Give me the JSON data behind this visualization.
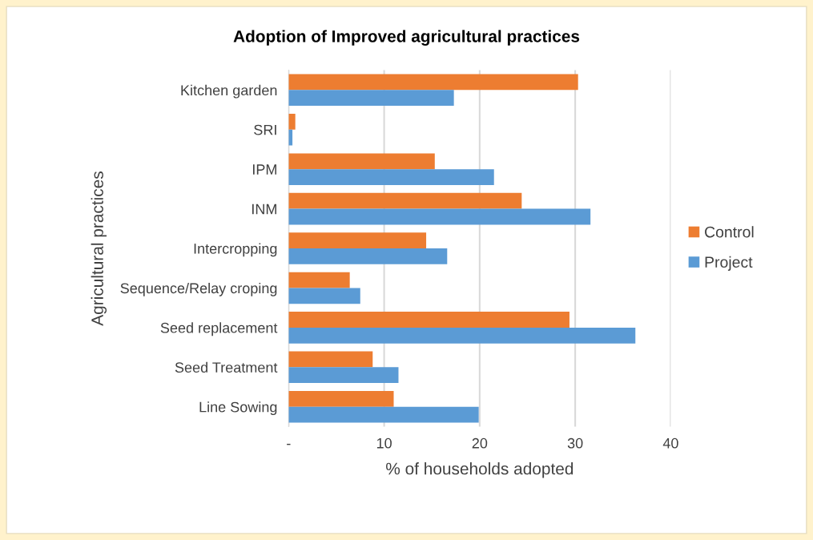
{
  "chart_data": {
    "type": "bar",
    "orientation": "horizontal",
    "title": "Adoption of Improved agricultural practices",
    "xlabel": "% of households adopted",
    "ylabel": "Agricultural practices",
    "categories": [
      "Kitchen garden",
      "SRI",
      "IPM",
      "INM",
      "Intercropping",
      "Sequence/Relay croping",
      "Seed replacement",
      "Seed Treatment",
      "Line Sowing"
    ],
    "series": [
      {
        "name": "Control",
        "color": "#ed7d31",
        "values": [
          30.3,
          0.7,
          15.3,
          24.4,
          14.4,
          6.4,
          29.4,
          8.8,
          11.0
        ]
      },
      {
        "name": "Project",
        "color": "#5b9bd5",
        "values": [
          17.3,
          0.4,
          21.5,
          31.6,
          16.6,
          7.5,
          36.3,
          11.5,
          19.9
        ]
      }
    ],
    "xlim": [
      0,
      40
    ],
    "xticks": [
      {
        "value": 0,
        "label": "-"
      },
      10,
      20,
      30,
      40
    ],
    "grid": "x",
    "legend": "right"
  }
}
